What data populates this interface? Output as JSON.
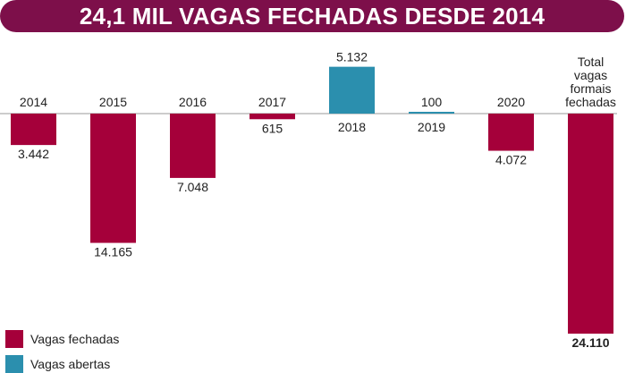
{
  "title": "24,1 MIL VAGAS FECHADAS DESDE 2014",
  "chart_data": {
    "type": "bar",
    "categories": [
      "2014",
      "2015",
      "2016",
      "2017",
      "2018",
      "2019",
      "2020",
      "Total vagas formais fechadas"
    ],
    "values": [
      -3442,
      -14165,
      -7048,
      -615,
      5132,
      100,
      -4072,
      -24110
    ],
    "value_labels": [
      "3.442",
      "14.165",
      "7.048",
      "615",
      "5.132",
      "100",
      "4.072",
      "24.110"
    ],
    "category_labels": [
      [
        "2014"
      ],
      [
        "2015"
      ],
      [
        "2016"
      ],
      [
        "2017"
      ],
      [
        "2018"
      ],
      [
        "2019"
      ],
      [
        "2020"
      ],
      [
        "Total",
        "vagas",
        "formais",
        "fechadas"
      ]
    ],
    "series_types": [
      "closed",
      "closed",
      "closed",
      "closed",
      "open",
      "open",
      "closed",
      "closed"
    ],
    "ylim": [
      -24110,
      5132
    ],
    "grid": false
  },
  "legend": {
    "closed_label": "Vagas fechadas",
    "open_label": "Vagas abertas"
  },
  "colors": {
    "closed": "#a5003a",
    "open": "#2b8fae",
    "title_bg": "#7d0f4a",
    "baseline": "#999999"
  }
}
